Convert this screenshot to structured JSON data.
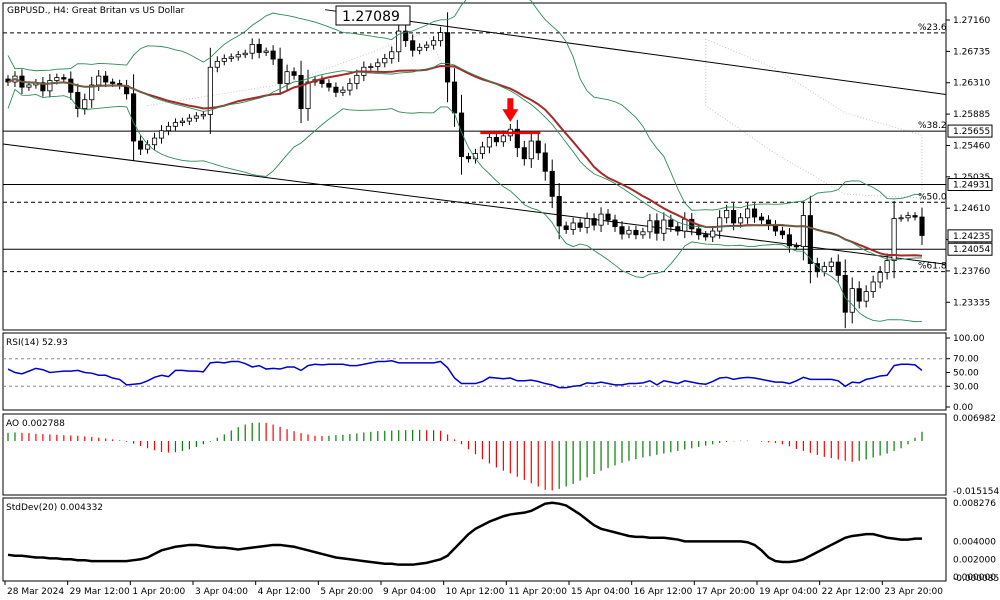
{
  "header": {
    "symbol_title": "GBPUSD., H4:  Great Britan vs US Dollar",
    "high_label": "1.27089"
  },
  "colors": {
    "bull_candle": "#ffffff",
    "bear_candle": "#000000",
    "ma": "#a52a2a",
    "bands": "#2e8b57",
    "ichimoku_cloud": "#c8c8c8",
    "rsi": "#0000cc",
    "ao_up": "#008000",
    "ao_down": "#ff0000",
    "stddev": "#000000",
    "arrow": "#ff0000"
  },
  "chart_data": [
    {
      "type": "candlestick",
      "panel": "price",
      "title": "GBPUSD., H4:  Great Britan vs US Dollar",
      "ylim": [
        1.23,
        1.2735
      ],
      "y_ticks": [
        "1.27160",
        "1.26735",
        "1.26310",
        "1.25885",
        "1.25460",
        "1.25035",
        "1.24610",
        "1.24185",
        "1.23760",
        "1.23335"
      ],
      "price_labels": [
        "1.25655",
        "1.24931",
        "1.24235",
        "1.24054"
      ],
      "levels": [
        {
          "label": "%23.6",
          "value": 1.26985,
          "style": "dashed"
        },
        {
          "label": "%38.2",
          "value": 1.25655,
          "style": "solid"
        },
        {
          "label": "",
          "value": 1.24931,
          "style": "solid"
        },
        {
          "label": "%50.0",
          "value": 1.2469,
          "style": "dashed"
        },
        {
          "label": "",
          "value": 1.24054,
          "style": "solid"
        },
        {
          "label": "%61.8",
          "value": 1.2375,
          "style": "dashed"
        }
      ],
      "close": [
        1.2632,
        1.264,
        1.2625,
        1.2628,
        1.2631,
        1.262,
        1.2634,
        1.2638,
        1.2636,
        1.2618,
        1.2596,
        1.2608,
        1.2628,
        1.264,
        1.2632,
        1.263,
        1.2627,
        1.2616,
        1.2552,
        1.2541,
        1.2547,
        1.2556,
        1.2566,
        1.2572,
        1.2577,
        1.2579,
        1.2583,
        1.2586,
        1.2588,
        1.2652,
        1.266,
        1.2664,
        1.2666,
        1.2669,
        1.2671,
        1.2683,
        1.2672,
        1.2674,
        1.2663,
        1.263,
        1.2646,
        1.2641,
        1.2596,
        1.2632,
        1.2635,
        1.263,
        1.2625,
        1.2618,
        1.2621,
        1.263,
        1.2641,
        1.2652,
        1.2653,
        1.2658,
        1.2664,
        1.2673,
        1.2701,
        1.2688,
        1.2675,
        1.2679,
        1.2682,
        1.2688,
        1.2699,
        1.2632,
        1.259,
        1.2531,
        1.2528,
        1.2535,
        1.2544,
        1.2557,
        1.2551,
        1.2559,
        1.2568,
        1.2543,
        1.2528,
        1.2552,
        1.2536,
        1.2511,
        1.2477,
        1.2437,
        1.2432,
        1.2441,
        1.2435,
        1.2447,
        1.2438,
        1.2453,
        1.2445,
        1.2436,
        1.2426,
        1.2431,
        1.2425,
        1.2429,
        1.2444,
        1.2427,
        1.2445,
        1.2436,
        1.243,
        1.2446,
        1.2433,
        1.2425,
        1.2422,
        1.243,
        1.2448,
        1.2458,
        1.2441,
        1.2448,
        1.246,
        1.2449,
        1.2445,
        1.2438,
        1.243,
        1.2425,
        1.241,
        1.2409,
        1.2451,
        1.2386,
        1.2375,
        1.2382,
        1.2388,
        1.237,
        1.232,
        1.2352,
        1.2335,
        1.2348,
        1.2361,
        1.2374,
        1.239,
        1.2447,
        1.2448,
        1.2451,
        1.2449,
        1.2424
      ],
      "x_ticks": [
        "28 Mar 2024",
        "29 Mar 12:00",
        "1 Apr 20:00",
        "3 Apr 04:00",
        "4 Apr 12:00",
        "5 Apr 20:00",
        "9 Apr 04:00",
        "10 Apr 12:00",
        "11 Apr 20:00",
        "15 Apr 04:00",
        "16 Apr 12:00",
        "17 Apr 20:00",
        "19 Apr 04:00",
        "22 Apr 12:00",
        "23 Apr 20:00"
      ]
    },
    {
      "type": "line",
      "panel": "rsi",
      "title": "RSI(14) 52.93",
      "ylim": [
        0,
        100
      ],
      "y_ticks": [
        "100.00",
        "70.00",
        "50.00",
        "30.00",
        "0.00"
      ],
      "values": [
        55,
        50,
        48,
        52,
        56,
        54,
        50,
        51,
        52,
        52,
        53,
        50,
        49,
        46,
        46,
        42,
        40,
        32,
        33,
        34,
        38,
        43,
        46,
        44,
        53,
        53,
        52,
        52,
        51,
        64,
        65,
        64,
        66,
        66,
        63,
        58,
        60,
        55,
        56,
        55,
        58,
        58,
        53,
        60,
        62,
        61,
        62,
        62,
        62,
        60,
        60,
        62,
        64,
        66,
        66,
        67,
        64,
        64,
        64,
        64,
        64,
        64,
        66,
        57,
        42,
        34,
        34,
        34,
        37,
        43,
        42,
        41,
        42,
        38,
        38,
        39,
        37,
        34,
        32,
        28,
        28,
        30,
        31,
        35,
        34,
        36,
        34,
        32,
        32,
        34,
        34,
        35,
        38,
        32,
        38,
        36,
        34,
        38,
        36,
        34,
        33,
        37,
        42,
        43,
        40,
        42,
        43,
        42,
        40,
        38,
        36,
        36,
        34,
        38,
        43,
        40,
        40,
        40,
        40,
        38,
        30,
        36,
        35,
        40,
        42,
        45,
        46,
        60,
        62,
        62,
        61,
        53
      ]
    },
    {
      "type": "bar",
      "panel": "ao",
      "title": "AO 0.002788",
      "y_ticks": [
        "0.006982",
        "-0.015154"
      ],
      "values": [
        0.0025,
        0.0026,
        0.0025,
        0.0024,
        0.0022,
        0.0021,
        0.002,
        0.0019,
        0.0018,
        0.0017,
        0.0016,
        0.0014,
        0.0012,
        0.001,
        0.0008,
        0.0005,
        0.0002,
        -0.0002,
        -0.0008,
        -0.0015,
        -0.0022,
        -0.0028,
        -0.0033,
        -0.0035,
        -0.0034,
        -0.003,
        -0.0025,
        -0.0018,
        -0.001,
        -0.0002,
        0.001,
        0.002,
        0.0032,
        0.0042,
        0.005,
        0.0055,
        0.0056,
        0.0055,
        0.005,
        0.0043,
        0.0036,
        0.003,
        0.0024,
        0.002,
        0.0016,
        0.0015,
        0.0016,
        0.0018,
        0.0019,
        0.0021,
        0.0023,
        0.0026,
        0.0028,
        0.003,
        0.0031,
        0.0032,
        0.0033,
        0.0033,
        0.0034,
        0.0034,
        0.0033,
        0.0033,
        0.0031,
        0.002,
        0.0005,
        -0.001,
        -0.0025,
        -0.004,
        -0.0055,
        -0.0068,
        -0.008,
        -0.009,
        -0.0098,
        -0.0108,
        -0.0118,
        -0.0128,
        -0.0138,
        -0.0148,
        -0.015,
        -0.0145,
        -0.0138,
        -0.013,
        -0.012,
        -0.011,
        -0.01,
        -0.009,
        -0.0082,
        -0.0074,
        -0.0066,
        -0.006,
        -0.0055,
        -0.005,
        -0.0046,
        -0.0042,
        -0.0038,
        -0.0034,
        -0.003,
        -0.0026,
        -0.0022,
        -0.0018,
        -0.0014,
        -0.001,
        -0.0006,
        -0.0003,
        -0.0001,
        0.0001,
        0.0001,
        0.0,
        -0.0002,
        -0.0004,
        -0.0006,
        -0.001,
        -0.0016,
        -0.0024,
        -0.003,
        -0.0036,
        -0.0042,
        -0.0048,
        -0.0052,
        -0.0056,
        -0.006,
        -0.0063,
        -0.006,
        -0.0056,
        -0.005,
        -0.0044,
        -0.0038,
        -0.003,
        -0.0022,
        -0.001,
        0.001,
        0.0028
      ]
    },
    {
      "type": "line",
      "panel": "stddev",
      "title": "StdDev(20) 0.004332",
      "y_ticks": [
        "0.008276",
        "0.004000",
        "0.002000",
        "0.000000",
        "-0.000085"
      ],
      "values": [
        0.0025,
        0.0024,
        0.0024,
        0.0023,
        0.0022,
        0.0022,
        0.0021,
        0.0021,
        0.002,
        0.002,
        0.0019,
        0.0019,
        0.0018,
        0.0018,
        0.0018,
        0.0018,
        0.0018,
        0.0018,
        0.0019,
        0.002,
        0.0022,
        0.0026,
        0.003,
        0.0032,
        0.0034,
        0.0035,
        0.0036,
        0.0036,
        0.0035,
        0.0034,
        0.0033,
        0.0033,
        0.0032,
        0.0031,
        0.0032,
        0.0033,
        0.0034,
        0.0035,
        0.0036,
        0.0036,
        0.0035,
        0.0034,
        0.0032,
        0.003,
        0.0028,
        0.0026,
        0.0024,
        0.0022,
        0.0021,
        0.002,
        0.0019,
        0.0018,
        0.0017,
        0.0016,
        0.0015,
        0.0015,
        0.0014,
        0.0014,
        0.0014,
        0.0015,
        0.0016,
        0.0018,
        0.002,
        0.0024,
        0.0032,
        0.004,
        0.0048,
        0.0054,
        0.0058,
        0.0062,
        0.0065,
        0.0068,
        0.007,
        0.0071,
        0.0072,
        0.0074,
        0.0078,
        0.0082,
        0.0083,
        0.0082,
        0.008,
        0.0075,
        0.007,
        0.0064,
        0.0058,
        0.0054,
        0.0052,
        0.005,
        0.0048,
        0.0046,
        0.0045,
        0.0045,
        0.0044,
        0.0044,
        0.0044,
        0.0043,
        0.0042,
        0.004,
        0.004,
        0.004,
        0.004,
        0.004,
        0.004,
        0.004,
        0.004,
        0.004,
        0.0039,
        0.0036,
        0.003,
        0.0022,
        0.0018,
        0.0017,
        0.0017,
        0.0018,
        0.002,
        0.0024,
        0.0028,
        0.0032,
        0.0036,
        0.004,
        0.0044,
        0.0046,
        0.0047,
        0.0048,
        0.0048,
        0.0046,
        0.0044,
        0.0043,
        0.0042,
        0.0042,
        0.0043,
        0.0043
      ]
    }
  ]
}
